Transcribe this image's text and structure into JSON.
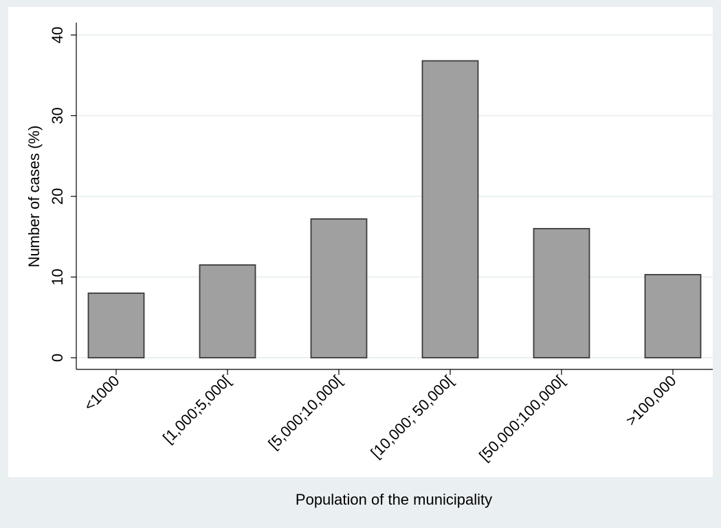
{
  "chart_data": {
    "type": "bar",
    "title": "",
    "xlabel": "Population of the municipality",
    "ylabel": "Number of cases (%)",
    "categories": [
      "<1000",
      "[1,000;5,000[",
      "[5,000;10,000[",
      "[10,000; 50,000[",
      "[50,000;100,000[",
      ">100,000"
    ],
    "values": [
      8.0,
      11.5,
      17.2,
      36.8,
      16.0,
      10.3
    ],
    "ylim": [
      0,
      40
    ],
    "yticks": [
      0,
      10,
      20,
      30,
      40
    ],
    "grid": true,
    "colors": {
      "bar": "#a0a0a0",
      "bar_edge": "#3a3a3a",
      "background": "#eaeff2",
      "plot": "#ffffff",
      "grid": "#e4ebee"
    }
  }
}
